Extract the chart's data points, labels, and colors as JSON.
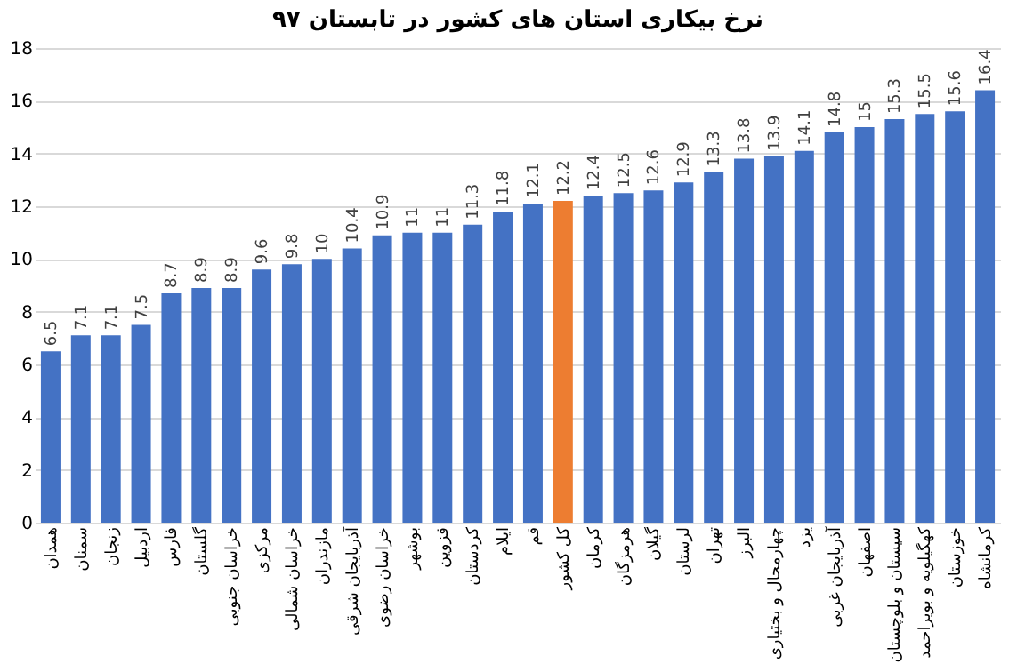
{
  "chart_data": {
    "type": "bar",
    "title": "نرخ بیکاری استان های کشور در تابستان ۹۷",
    "categories": [
      "همدان",
      "سمنان",
      "زنجان",
      "اردبیل",
      "فارس",
      "گلستان",
      "خراسان جنوبی",
      "مرکزی",
      "خراسان شمالی",
      "مازندران",
      "آذربایجان شرقی",
      "خراسان رضوی",
      "بوشهر",
      "قزوین",
      "کردستان",
      "ایلام",
      "قم",
      "کل کشور",
      "کرمان",
      "هرمزگان",
      "گیلان",
      "لرستان",
      "تهران",
      "البرز",
      "چهارمحال و بختیاری",
      "یزد",
      "آذربایجان غربی",
      "اصفهان",
      "سیستان و بلوچستان",
      "کهگیلویه و بویراحمد",
      "خوزستان",
      "کرمانشاه"
    ],
    "values": [
      6.5,
      7.1,
      7.1,
      7.5,
      8.7,
      8.9,
      8.9,
      9.6,
      9.8,
      10,
      10.4,
      10.9,
      11,
      11,
      11.3,
      11.8,
      12.1,
      12.2,
      12.4,
      12.5,
      12.6,
      12.9,
      13.3,
      13.8,
      13.9,
      14.1,
      14.8,
      15,
      15.3,
      15.5,
      15.6,
      16.4
    ],
    "colors": [
      "#4472c4",
      "#4472c4",
      "#4472c4",
      "#4472c4",
      "#4472c4",
      "#4472c4",
      "#4472c4",
      "#4472c4",
      "#4472c4",
      "#4472c4",
      "#4472c4",
      "#4472c4",
      "#4472c4",
      "#4472c4",
      "#4472c4",
      "#4472c4",
      "#4472c4",
      "#ed7d31",
      "#4472c4",
      "#4472c4",
      "#4472c4",
      "#4472c4",
      "#4472c4",
      "#4472c4",
      "#4472c4",
      "#4472c4",
      "#4472c4",
      "#4472c4",
      "#4472c4",
      "#4472c4",
      "#4472c4",
      "#4472c4"
    ],
    "ylim": [
      0,
      18
    ],
    "yticks": [
      0,
      2,
      4,
      6,
      8,
      10,
      12,
      14,
      16,
      18
    ],
    "grid": "y",
    "data_labels": true
  }
}
